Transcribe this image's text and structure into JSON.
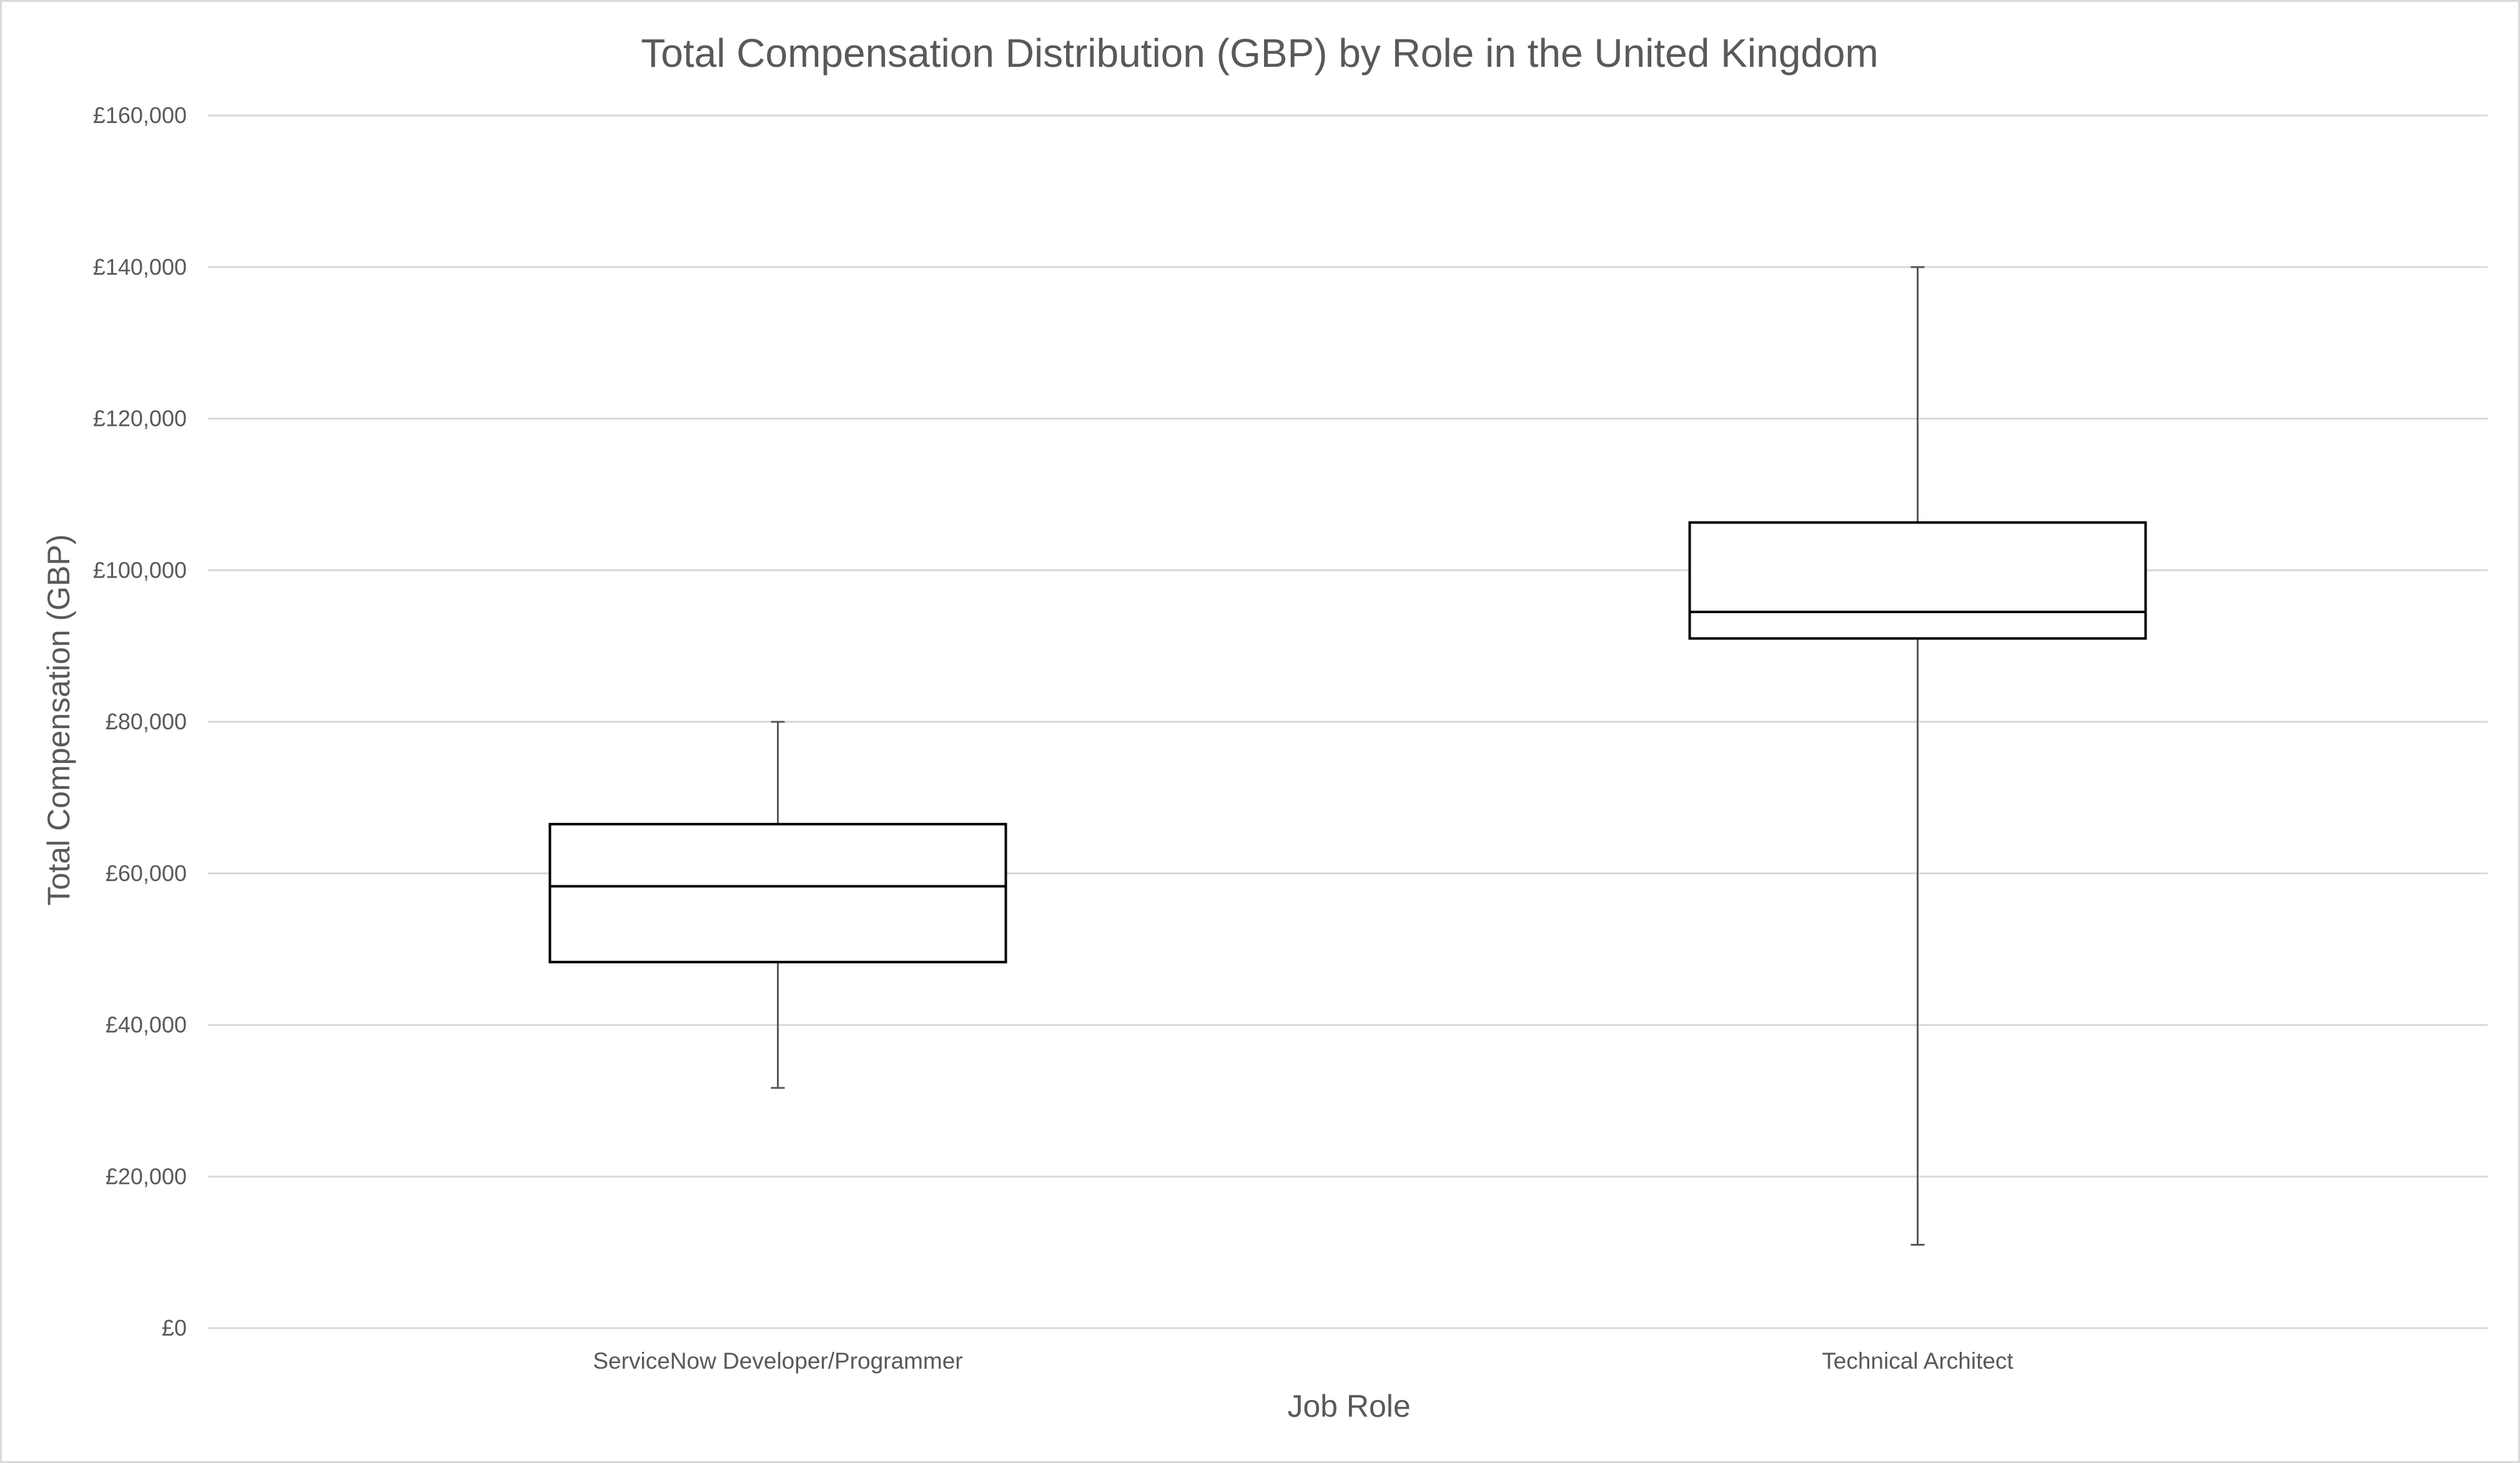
{
  "chart_data": {
    "type": "box",
    "title": "Total Compensation Distribution (GBP) by Role in the United Kingdom",
    "xlabel": "Job Role",
    "ylabel": "Total Compensation (GBP)",
    "ylim": [
      0,
      160000
    ],
    "y_tick_step": 20000,
    "y_tick_prefix": "£",
    "y_ticks": [
      "£0",
      "£20,000",
      "£40,000",
      "£60,000",
      "£80,000",
      "£100,000",
      "£120,000",
      "£140,000",
      "£160,000"
    ],
    "grid": true,
    "legend": "none",
    "categories": [
      "ServiceNow Developer/Programmer",
      "Technical Architect"
    ],
    "boxes": [
      {
        "category": "ServiceNow Developer/Programmer",
        "min": 31700,
        "q1": 48300,
        "median": 58300,
        "q3": 66500,
        "max": 80000
      },
      {
        "category": "Technical Architect",
        "min": 11000,
        "q1": 91000,
        "median": 94500,
        "q3": 106300,
        "max": 140000
      }
    ],
    "colors": {
      "box_stroke": "#000000",
      "box_fill": "#ffffff",
      "whisker": "#595959",
      "gridline": "#d9d9d9",
      "text": "#595959"
    }
  }
}
